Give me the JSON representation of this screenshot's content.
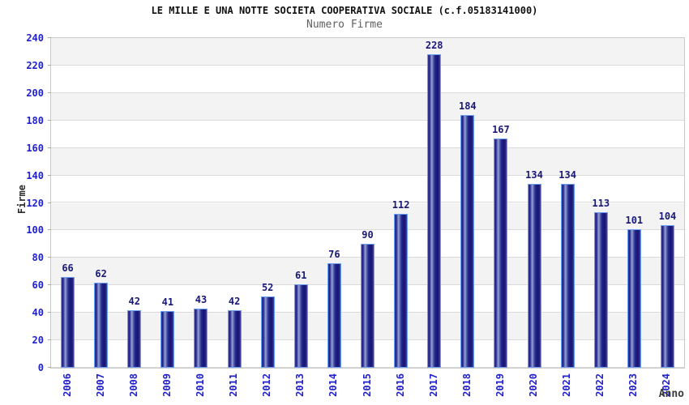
{
  "chart_data": {
    "type": "bar",
    "title": "LE MILLE E UNA NOTTE SOCIETA COOPERATIVA SOCIALE (c.f.05183141000)",
    "subtitle": "Numero Firme",
    "xlabel": "Anno",
    "ylabel": "Firme",
    "categories": [
      "2006",
      "2007",
      "2008",
      "2009",
      "2010",
      "2011",
      "2012",
      "2013",
      "2014",
      "2015",
      "2016",
      "2017",
      "2018",
      "2019",
      "2020",
      "2021",
      "2022",
      "2023",
      "2024"
    ],
    "values": [
      66,
      62,
      42,
      41,
      43,
      42,
      52,
      61,
      76,
      90,
      112,
      228,
      184,
      167,
      134,
      134,
      113,
      101,
      104
    ],
    "ylim": [
      0,
      240
    ],
    "ytick_step": 20,
    "yticks": [
      0,
      20,
      40,
      60,
      80,
      100,
      120,
      140,
      160,
      180,
      200,
      220,
      240
    ],
    "grid": "horizontal-gridlines-with-alternating-bands",
    "legend_position": "none",
    "colors": {
      "band_gray": "#f3f3f3",
      "band_white": "#ffffff",
      "grid_line": "#dadada",
      "plot_border": "#c9c9c9",
      "bar_border": "#6b9df0",
      "bar_dark": "#161670",
      "bar_highlight": "#9aa3d8",
      "value_label": "#181878",
      "tick_label_blue": "#2020cc",
      "title": "#111111",
      "subtitle": "#606060",
      "axis_title": "#2b2b2b"
    }
  }
}
